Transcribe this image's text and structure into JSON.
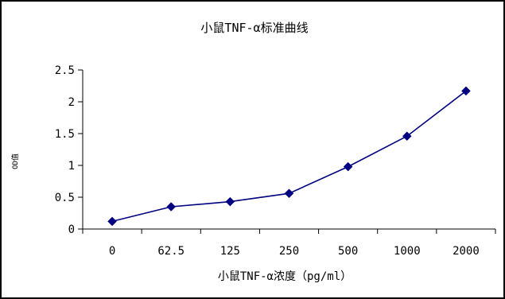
{
  "chart_data": {
    "type": "line",
    "title": "小鼠TNF-α标准曲线",
    "xlabel": "小鼠TNF-α浓度（pg/ml）",
    "ylabel": "OD值",
    "categories": [
      "0",
      "62.5",
      "125",
      "250",
      "500",
      "1000",
      "2000"
    ],
    "series": [
      {
        "values": [
          0.12,
          0.35,
          0.43,
          0.56,
          0.98,
          1.46,
          2.17
        ]
      }
    ],
    "yticks": [
      "0",
      "0.5",
      "1",
      "1.5",
      "2",
      "2.5"
    ],
    "ylim": [
      0,
      2.5
    ],
    "grid": false,
    "legend": "none",
    "marker": "diamond",
    "line_color": "#000080",
    "marker_color": "#000080"
  }
}
